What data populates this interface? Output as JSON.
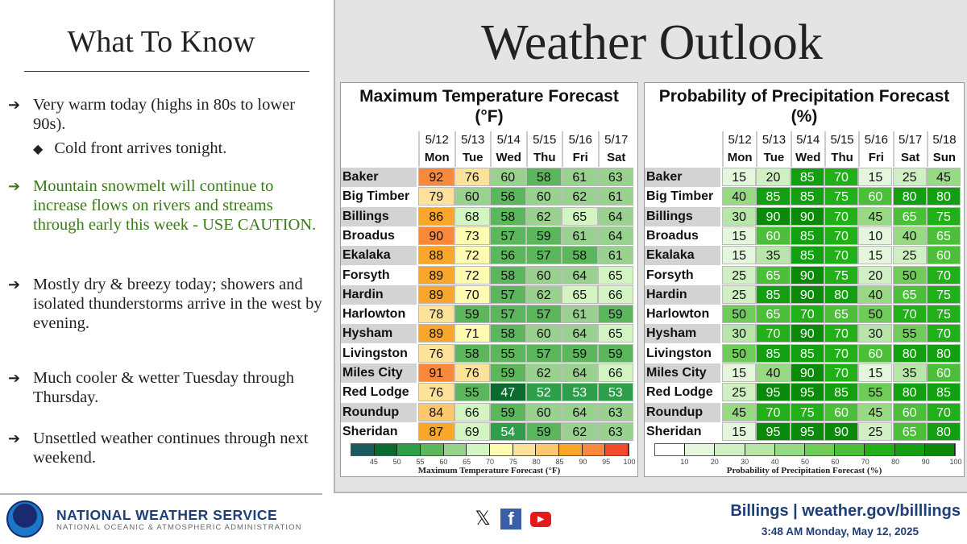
{
  "left": {
    "title": "What To Know",
    "bullets": [
      {
        "text": "Very warm today (highs in 80s to lower 90s).",
        "sub": "Cold front arrives tonight.",
        "color": "#222222"
      },
      {
        "text": "Mountain snowmelt will continue to increase flows on rivers and streams through early this week - USE CAUTION.",
        "color": "#3a7a1c"
      },
      {
        "text": "Mostly dry & breezy today; showers and isolated thunderstorms arrive in the west by evening.",
        "color": "#222222"
      },
      {
        "text": "Much cooler & wetter Tuesday through Thursday.",
        "color": "#222222"
      },
      {
        "text": "Unsettled weather continues through next weekend.",
        "color": "#222222"
      }
    ],
    "arrow_icon": "arrow-right",
    "sub_icon": "diamond"
  },
  "right": {
    "title": "Weather Outlook"
  },
  "temp": {
    "title": "Maximum Temperature Forecast",
    "unit": "(°F)",
    "dates": [
      "5/12",
      "5/13",
      "5/14",
      "5/15",
      "5/16",
      "5/17"
    ],
    "days": [
      "Mon",
      "Tue",
      "Wed",
      "Thu",
      "Fri",
      "Sat"
    ],
    "rows": [
      {
        "city": "Baker",
        "v": [
          92,
          76,
          60,
          58,
          61,
          63
        ]
      },
      {
        "city": "Big Timber",
        "v": [
          79,
          60,
          56,
          60,
          62,
          61
        ]
      },
      {
        "city": "Billings",
        "v": [
          86,
          68,
          58,
          62,
          65,
          64
        ]
      },
      {
        "city": "Broadus",
        "v": [
          90,
          73,
          57,
          59,
          61,
          64
        ]
      },
      {
        "city": "Ekalaka",
        "v": [
          88,
          72,
          56,
          57,
          58,
          61
        ]
      },
      {
        "city": "Forsyth",
        "v": [
          89,
          72,
          58,
          60,
          64,
          65
        ]
      },
      {
        "city": "Hardin",
        "v": [
          89,
          70,
          57,
          62,
          65,
          66
        ]
      },
      {
        "city": "Harlowton",
        "v": [
          78,
          59,
          57,
          57,
          61,
          59
        ]
      },
      {
        "city": "Hysham",
        "v": [
          89,
          71,
          58,
          60,
          64,
          65
        ]
      },
      {
        "city": "Livingston",
        "v": [
          76,
          58,
          55,
          57,
          59,
          59
        ]
      },
      {
        "city": "Miles City",
        "v": [
          91,
          76,
          59,
          62,
          64,
          66
        ]
      },
      {
        "city": "Red Lodge",
        "v": [
          76,
          55,
          47,
          52,
          53,
          53
        ]
      },
      {
        "city": "Roundup",
        "v": [
          84,
          66,
          59,
          60,
          64,
          63
        ]
      },
      {
        "city": "Sheridan",
        "v": [
          87,
          69,
          54,
          59,
          62,
          63
        ]
      }
    ],
    "legend_ticks": [
      "45",
      "50",
      "55",
      "60",
      "65",
      "70",
      "75",
      "80",
      "85",
      "90",
      "95",
      "100"
    ],
    "legend_colors": [
      "#1b5a5c",
      "#0b6b2e",
      "#2e9e4a",
      "#5cb65c",
      "#98d28e",
      "#d2f5c2",
      "#fffbb0",
      "#fde39a",
      "#fcc86e",
      "#f9a62a",
      "#f8883a",
      "#f24a2a"
    ],
    "legend_caption": "Maximum Temperature Forecast (°F)"
  },
  "pop": {
    "title": "Probability of Precipitation Forecast",
    "unit": "(%)",
    "dates": [
      "5/12",
      "5/13",
      "5/14",
      "5/15",
      "5/16",
      "5/17",
      "5/18"
    ],
    "days": [
      "Mon",
      "Tue",
      "Wed",
      "Thu",
      "Fri",
      "Sat",
      "Sun"
    ],
    "rows": [
      {
        "city": "Baker",
        "v": [
          15,
          20,
          85,
          70,
          15,
          25,
          45
        ]
      },
      {
        "city": "Big Timber",
        "v": [
          40,
          85,
          85,
          75,
          60,
          80,
          80
        ]
      },
      {
        "city": "Billings",
        "v": [
          30,
          90,
          90,
          70,
          45,
          65,
          75
        ]
      },
      {
        "city": "Broadus",
        "v": [
          15,
          60,
          85,
          70,
          10,
          40,
          65
        ]
      },
      {
        "city": "Ekalaka",
        "v": [
          15,
          35,
          85,
          70,
          15,
          25,
          60
        ]
      },
      {
        "city": "Forsyth",
        "v": [
          25,
          65,
          90,
          75,
          20,
          50,
          70
        ]
      },
      {
        "city": "Hardin",
        "v": [
          25,
          85,
          90,
          80,
          40,
          65,
          75
        ]
      },
      {
        "city": "Harlowton",
        "v": [
          50,
          65,
          70,
          65,
          50,
          70,
          75
        ]
      },
      {
        "city": "Hysham",
        "v": [
          30,
          70,
          90,
          70,
          30,
          55,
          70
        ]
      },
      {
        "city": "Livingston",
        "v": [
          50,
          85,
          85,
          70,
          60,
          80,
          80
        ]
      },
      {
        "city": "Miles City",
        "v": [
          15,
          40,
          90,
          70,
          15,
          35,
          60
        ]
      },
      {
        "city": "Red Lodge",
        "v": [
          25,
          95,
          95,
          85,
          55,
          80,
          85
        ]
      },
      {
        "city": "Roundup",
        "v": [
          45,
          70,
          75,
          60,
          45,
          60,
          70
        ]
      },
      {
        "city": "Sheridan",
        "v": [
          15,
          95,
          95,
          90,
          25,
          65,
          80
        ]
      }
    ],
    "legend_ticks": [
      "10",
      "20",
      "30",
      "40",
      "50",
      "60",
      "70",
      "80",
      "90",
      "100"
    ],
    "legend_colors": [
      "#ffffff",
      "#e4f7dc",
      "#d0f0c4",
      "#b8e6a8",
      "#98da84",
      "#70cc58",
      "#4cbf38",
      "#22b018",
      "#12a010",
      "#0a8a08"
    ],
    "legend_caption": "Probability of Precipitation Forecast (%)"
  },
  "footer": {
    "agency": "NATIONAL WEATHER SERVICE",
    "agency_sub": "NATIONAL OCEANIC & ATMOSPHERIC ADMINISTRATION",
    "logo_text": "NOAA",
    "social": [
      "x-icon",
      "facebook-icon",
      "youtube-icon"
    ],
    "office": "Billings | weather.gov/billlings",
    "timestamp": "3:48 AM Monday, May 12, 2025"
  }
}
